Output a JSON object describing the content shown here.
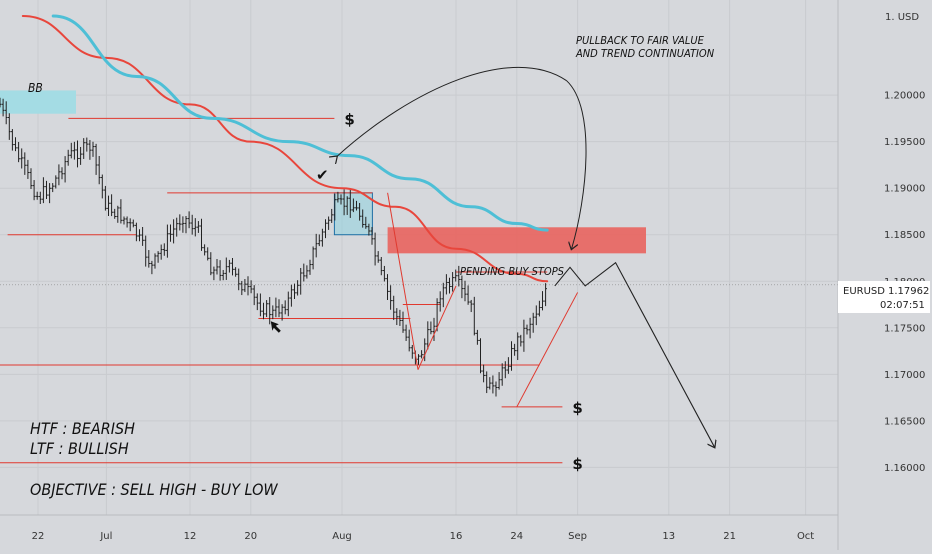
{
  "chart_data": {
    "type": "ohlc",
    "symbol": "EURUSD",
    "currency_label": "1. USD",
    "last_price": "1.17962",
    "countdown": "02:07:51",
    "ylim": [
      1.1565,
      1.2085
    ],
    "y_ticks": [
      1.2,
      1.195,
      1.19,
      1.185,
      1.18,
      1.175,
      1.17,
      1.165,
      1.16
    ],
    "y_tick_labels": [
      "1.20000",
      "1.19500",
      "1.19000",
      "1.18500",
      "1.18000",
      "1.17500",
      "1.17000",
      "1.16500",
      "1.16000"
    ],
    "x_ticks": [
      "22",
      "Jul",
      "12",
      "20",
      "Aug",
      "16",
      "24",
      "Sep",
      "13",
      "21",
      "Oct"
    ],
    "x_tick_dates": [
      "2021-06-22",
      "2021-07-01",
      "2021-07-12",
      "2021-07-20",
      "2021-08-01",
      "2021-08-16",
      "2021-08-24",
      "2021-09-01",
      "2021-09-13",
      "2021-09-21",
      "2021-10-01"
    ],
    "price_path": [
      [
        "2021-06-17",
        1.199
      ],
      [
        "2021-06-19",
        1.194
      ],
      [
        "2021-06-22",
        1.189
      ],
      [
        "2021-06-24",
        1.1905
      ],
      [
        "2021-06-26",
        1.1935
      ],
      [
        "2021-06-29",
        1.1945
      ],
      [
        "2021-07-01",
        1.188
      ],
      [
        "2021-07-03",
        1.187
      ],
      [
        "2021-07-05",
        1.185
      ],
      [
        "2021-07-07",
        1.1815
      ],
      [
        "2021-07-09",
        1.1845
      ],
      [
        "2021-07-11",
        1.187
      ],
      [
        "2021-07-13",
        1.1855
      ],
      [
        "2021-07-15",
        1.181
      ],
      [
        "2021-07-17",
        1.1815
      ],
      [
        "2021-07-19",
        1.1795
      ],
      [
        "2021-07-21",
        1.1775
      ],
      [
        "2021-07-23",
        1.1765
      ],
      [
        "2021-07-25",
        1.178
      ],
      [
        "2021-07-27",
        1.181
      ],
      [
        "2021-07-29",
        1.1845
      ],
      [
        "2021-07-31",
        1.188
      ],
      [
        "2021-08-02",
        1.1885
      ],
      [
        "2021-08-04",
        1.1865
      ],
      [
        "2021-08-06",
        1.181
      ],
      [
        "2021-08-08",
        1.1765
      ],
      [
        "2021-08-10",
        1.173
      ],
      [
        "2021-08-11",
        1.1715
      ],
      [
        "2021-08-13",
        1.1755
      ],
      [
        "2021-08-14",
        1.179
      ],
      [
        "2021-08-16",
        1.18
      ],
      [
        "2021-08-18",
        1.177
      ],
      [
        "2021-08-19",
        1.172
      ],
      [
        "2021-08-20",
        1.168
      ],
      [
        "2021-08-22",
        1.17
      ],
      [
        "2021-08-24",
        1.1735
      ],
      [
        "2021-08-26",
        1.176
      ],
      [
        "2021-08-27",
        1.1775
      ],
      [
        "2021-08-28",
        1.1796
      ]
    ],
    "moving_averages": [
      {
        "name": "",
        "color": "#e8463c",
        "points": [
          [
            "2021-06-20",
            1.2085
          ],
          [
            "2021-07-01",
            1.204
          ],
          [
            "2021-07-12",
            1.199
          ],
          [
            "2021-07-20",
            1.195
          ],
          [
            "2021-08-01",
            1.19
          ],
          [
            "2021-08-08",
            1.188
          ],
          [
            "2021-08-16",
            1.1835
          ],
          [
            "2021-08-24",
            1.1808
          ],
          [
            "2021-08-28",
            1.18
          ]
        ]
      },
      {
        "name": "",
        "color": "#4ebfd6",
        "points": [
          [
            "2021-06-24",
            1.2085
          ],
          [
            "2021-07-05",
            1.202
          ],
          [
            "2021-07-15",
            1.1975
          ],
          [
            "2021-07-25",
            1.195
          ],
          [
            "2021-08-02",
            1.1935
          ],
          [
            "2021-08-10",
            1.191
          ],
          [
            "2021-08-18",
            1.188
          ],
          [
            "2021-08-24",
            1.1862
          ],
          [
            "2021-08-28",
            1.1855
          ]
        ]
      }
    ],
    "zones": [
      {
        "label": "BB",
        "color": "#9fdde4",
        "x": [
          "2021-06-16",
          "2021-06-27"
        ],
        "y": [
          1.198,
          1.2005
        ]
      },
      {
        "label": "",
        "color": "#e9645e",
        "x": [
          "2021-08-07",
          "2021-09-10"
        ],
        "y": [
          1.183,
          1.1858
        ]
      },
      {
        "label": "",
        "color": "#8fd3e0",
        "x": [
          "2021-07-31",
          "2021-08-05"
        ],
        "y": [
          1.185,
          1.1895
        ]
      }
    ],
    "levels": [
      {
        "y": 1.1975,
        "x": [
          "2021-06-26",
          "2021-07-31"
        ],
        "label": "$"
      },
      {
        "y": 1.1895,
        "x": [
          "2021-07-09",
          "2021-08-05"
        ],
        "label": ""
      },
      {
        "y": 1.185,
        "x": [
          "2021-06-18",
          "2021-07-05"
        ],
        "label": ""
      },
      {
        "y": 1.176,
        "x": [
          "2021-07-21",
          "2021-08-10"
        ],
        "label": ""
      },
      {
        "y": 1.181,
        "x": [
          "2021-08-16",
          "2021-08-28"
        ],
        "label": ""
      },
      {
        "y": 1.1775,
        "x": [
          "2021-08-09",
          "2021-08-14"
        ],
        "label": ""
      },
      {
        "y": 1.171,
        "x": [
          "2021-06-12",
          "2021-08-27"
        ],
        "label": ""
      },
      {
        "y": 1.1665,
        "x": [
          "2021-08-22",
          "2021-08-30"
        ],
        "label": "$"
      },
      {
        "y": 1.1605,
        "x": [
          "2021-06-12",
          "2021-08-30"
        ],
        "label": "$"
      }
    ],
    "annotations": {
      "htf": "HTF : BEARISH",
      "ltf": "LTF : BULLISH",
      "objective": "OBJECTIVE : SELL HIGH - BUY LOW",
      "pullback_line1": "PULLBACK TO FAIR VALUE",
      "pullback_line2": "AND TREND CONTINUATION",
      "pending": "PENDING BUY STOPS",
      "bb": "BB",
      "check": "✔"
    },
    "projection_path": [
      [
        "2021-08-29",
        1.1795
      ],
      [
        "2021-08-31",
        1.1815
      ],
      [
        "2021-09-02",
        1.1795
      ],
      [
        "2021-09-06",
        1.182
      ],
      [
        "2021-09-19",
        1.1622
      ]
    ],
    "grid": true,
    "legend": "none"
  }
}
